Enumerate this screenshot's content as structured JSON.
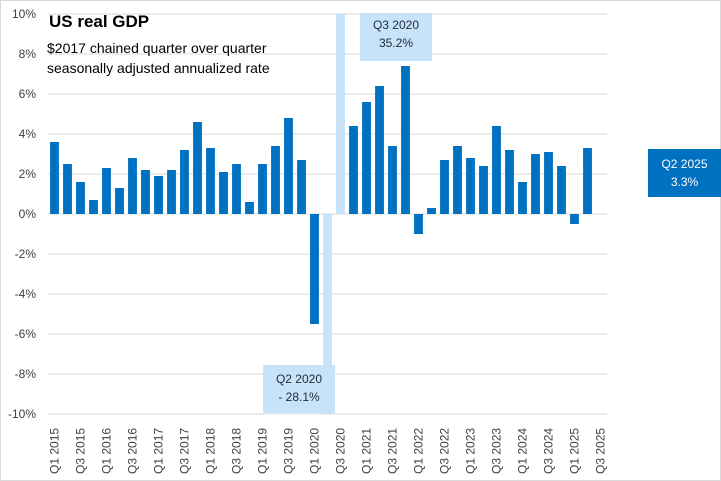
{
  "chart_data": {
    "type": "bar",
    "title": "US real GDP",
    "subtitle_lines": [
      "$2017 chained quarter over quarter",
      "seasonally adjusted annualized rate"
    ],
    "xlabel": "",
    "ylabel": "",
    "ylim": [
      -10,
      10
    ],
    "yticks": [
      -10,
      -8,
      -6,
      -4,
      -2,
      0,
      2,
      4,
      6,
      8,
      10
    ],
    "ytick_labels": [
      "-10%",
      "-8%",
      "-6%",
      "-4%",
      "-2%",
      "0%",
      "2%",
      "4%",
      "6%",
      "8%",
      "10%"
    ],
    "grid": true,
    "categories": [
      "Q1 2015",
      "Q2 2015",
      "Q3 2015",
      "Q4 2015",
      "Q1 2016",
      "Q2 2016",
      "Q3 2016",
      "Q4 2016",
      "Q1 2017",
      "Q2 2017",
      "Q3 2017",
      "Q4 2017",
      "Q1 2018",
      "Q2 2018",
      "Q3 2018",
      "Q4 2018",
      "Q1 2019",
      "Q2 2019",
      "Q3 2019",
      "Q4 2019",
      "Q1 2020",
      "Q2 2020",
      "Q3 2020",
      "Q4 2020",
      "Q1 2021",
      "Q2 2021",
      "Q3 2021",
      "Q4 2021",
      "Q1 2022",
      "Q2 2022",
      "Q3 2022",
      "Q4 2022",
      "Q1 2023",
      "Q2 2023",
      "Q3 2023",
      "Q4 2023",
      "Q1 2024",
      "Q2 2024",
      "Q3 2024",
      "Q4 2024",
      "Q1 2025",
      "Q2 2025",
      "Q3 2025"
    ],
    "xtick_labels": [
      "Q1 2015",
      "Q3 2015",
      "Q1 2016",
      "Q3 2016",
      "Q1 2017",
      "Q3 2017",
      "Q1 2018",
      "Q3 2018",
      "Q1 2019",
      "Q3 2019",
      "Q1 2020",
      "Q3 2020",
      "Q1 2021",
      "Q3 2021",
      "Q1 2022",
      "Q3 2022",
      "Q1 2023",
      "Q3 2023",
      "Q1 2024",
      "Q3 2024",
      "Q1 2025",
      "Q3 2025"
    ],
    "series": [
      {
        "name": "Real GDP growth (%)",
        "color": "#0070c0",
        "highlight_color": "#c7e3f9",
        "highlight_categories": [
          "Q2 2020",
          "Q3 2020"
        ],
        "values": [
          3.6,
          2.5,
          1.6,
          0.7,
          2.3,
          1.3,
          2.8,
          2.2,
          1.9,
          2.2,
          3.2,
          4.6,
          3.3,
          2.1,
          2.5,
          0.6,
          2.5,
          3.4,
          4.8,
          2.7,
          -5.5,
          -28.1,
          35.2,
          4.4,
          5.6,
          6.4,
          3.4,
          7.4,
          -1.0,
          0.3,
          2.7,
          3.4,
          2.8,
          2.4,
          4.4,
          3.2,
          1.6,
          3.0,
          3.1,
          2.4,
          -0.5,
          3.3,
          null
        ]
      }
    ],
    "annotations": [
      {
        "category": "Q3 2020",
        "lines": [
          "Q3 2020",
          "35.2%"
        ],
        "style": "light"
      },
      {
        "category": "Q2 2020",
        "lines": [
          "Q2 2020",
          "- 28.1%"
        ],
        "style": "light"
      },
      {
        "category": "Q2 2025",
        "lines": [
          "Q2 2025",
          "3.3%"
        ],
        "style": "dark"
      }
    ],
    "legend": "none"
  }
}
